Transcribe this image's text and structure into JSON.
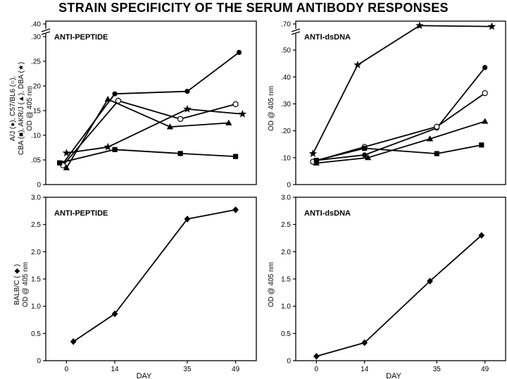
{
  "figure_title": "STRAIN SPECIFICITY OF THE SERUM ANTIBODY RESPONSES",
  "chart_data": [
    {
      "id": "tl",
      "type": "line",
      "panel_label": "ANTI-PEPTIDE",
      "ylabel_lines": [
        "A/J (●), C57/BL6 (○),",
        "CBA (■), AKR/J (▲), DBA (★)",
        "OD @ 405 nm"
      ],
      "xlabel": "",
      "ylim": [
        0,
        0.4
      ],
      "y_break": true,
      "yticks": [
        0,
        0.05,
        0.1,
        0.15,
        0.2,
        0.25,
        0.3,
        0.4
      ],
      "ytick_labels": [
        "0",
        ".05",
        ".10",
        ".15",
        ".20",
        ".25",
        ".30",
        ".40"
      ],
      "series": [
        {
          "marker": "circle-filled",
          "x": [
            -1,
            14,
            35,
            50
          ],
          "y": [
            0.043,
            0.184,
            0.189,
            0.268
          ]
        },
        {
          "marker": "circle-open",
          "x": [
            -1,
            15,
            33,
            49
          ],
          "y": [
            0.039,
            0.17,
            0.133,
            0.163
          ]
        },
        {
          "marker": "square",
          "x": [
            -2,
            14,
            33,
            49
          ],
          "y": [
            0.044,
            0.071,
            0.063,
            0.057
          ]
        },
        {
          "marker": "triangle",
          "x": [
            0,
            12,
            30,
            47
          ],
          "y": [
            0.034,
            0.173,
            0.117,
            0.125
          ]
        },
        {
          "marker": "star",
          "x": [
            0,
            12,
            35,
            51
          ],
          "y": [
            0.064,
            0.076,
            0.153,
            0.143
          ]
        }
      ]
    },
    {
      "id": "tr",
      "type": "line",
      "panel_label": "ANTI-dsDNA",
      "ylabel_lines": [
        "OD @ 405 nm"
      ],
      "xlabel": "",
      "ylim": [
        0,
        0.7
      ],
      "y_break": true,
      "yticks": [
        0,
        0.1,
        0.2,
        0.3,
        0.4,
        0.5,
        0.7
      ],
      "ytick_labels": [
        "0",
        ".10",
        ".20",
        ".30",
        ".40",
        ".50",
        ".70"
      ],
      "series": [
        {
          "marker": "circle-filled",
          "x": [
            0,
            14,
            35,
            49
          ],
          "y": [
            0.09,
            0.11,
            0.21,
            0.435
          ]
        },
        {
          "marker": "circle-open",
          "x": [
            -1,
            14,
            35,
            49
          ],
          "y": [
            0.085,
            0.14,
            0.215,
            0.34
          ]
        },
        {
          "marker": "square",
          "x": [
            0,
            14,
            35,
            48
          ],
          "y": [
            0.09,
            0.135,
            0.115,
            0.147
          ]
        },
        {
          "marker": "triangle",
          "x": [
            0,
            15,
            33,
            49
          ],
          "y": [
            0.08,
            0.1,
            0.17,
            0.235
          ]
        },
        {
          "marker": "star",
          "x": [
            -1,
            12,
            30,
            51
          ],
          "y": [
            0.115,
            0.445,
            0.68,
            0.67
          ]
        }
      ]
    },
    {
      "id": "bl",
      "type": "line",
      "panel_label": "ANTI-PEPTIDE",
      "ylabel_lines": [
        "BALB/C ( ◆ )",
        "OD @ 405 nm"
      ],
      "xlabel": "DAY",
      "ylim": [
        0,
        3.0
      ],
      "yticks": [
        0,
        0.5,
        1.0,
        1.5,
        2.0,
        2.5,
        3.0
      ],
      "ytick_labels": [
        "0",
        "0.5",
        "1.0",
        "1.5",
        "2.0",
        "2.5",
        "3.0"
      ],
      "xticks": [
        0,
        14,
        35,
        49
      ],
      "xtick_labels": [
        "0",
        "14",
        "35",
        "49"
      ],
      "series": [
        {
          "marker": "diamond",
          "x": [
            2,
            14,
            35,
            49
          ],
          "y": [
            0.35,
            0.86,
            2.6,
            2.77
          ]
        }
      ]
    },
    {
      "id": "br",
      "type": "line",
      "panel_label": "ANTI-dsDNA",
      "ylabel_lines": [
        "OD @ 405 nm"
      ],
      "xlabel": "DAY",
      "ylim": [
        0,
        3.0
      ],
      "yticks": [
        0,
        0.5,
        1.0,
        1.5,
        2.0,
        2.5,
        3.0
      ],
      "ytick_labels": [
        "0",
        "0.5",
        "1.0",
        "1.5",
        "2.0",
        "2.5",
        "3.0"
      ],
      "xticks": [
        0,
        14,
        35,
        49
      ],
      "xtick_labels": [
        "0",
        "14",
        "35",
        "49"
      ],
      "series": [
        {
          "marker": "diamond",
          "x": [
            0,
            14,
            33,
            48
          ],
          "y": [
            0.08,
            0.33,
            1.46,
            2.3
          ]
        }
      ]
    }
  ]
}
